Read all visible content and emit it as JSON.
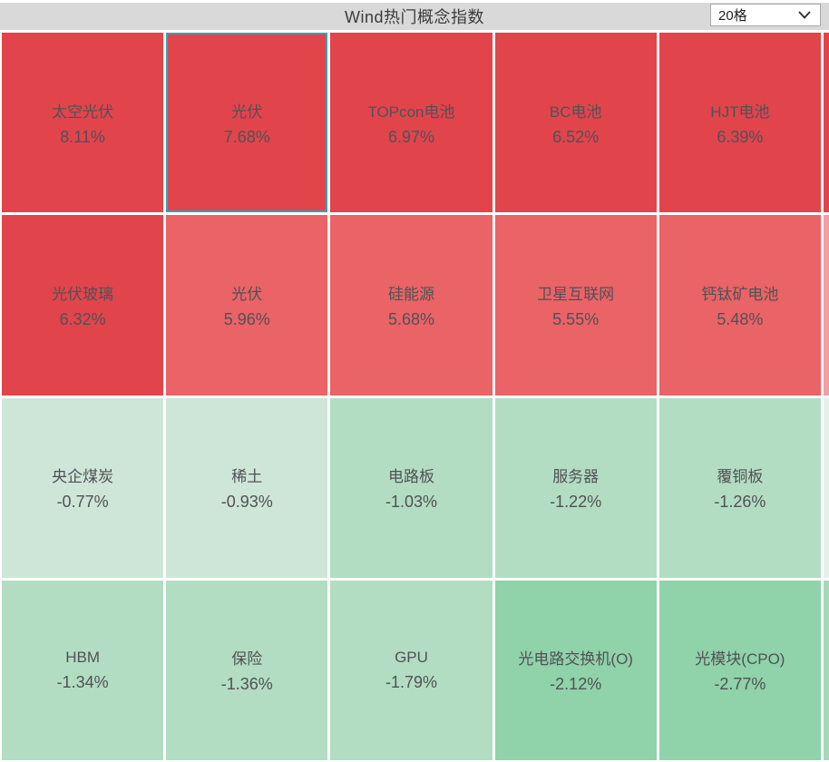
{
  "header": {
    "title": "Wind热门概念指数",
    "grid_size_selector": {
      "value": "20格",
      "chevron_icon": "chevron-down"
    }
  },
  "colors": {
    "header_bg": "#d9d9d9",
    "tile_text": "#515156",
    "selected_border": "#35a2b5",
    "red_strong": "#e2444b",
    "red_light": "#ea6366",
    "green_pale": "#cee6d8",
    "green_mid": "#b2ddc2",
    "green_deep": "#90d2a9",
    "sliver_red": "#e2444b",
    "sliver_pink": "#f0a0a2",
    "sliver_pale_green": "#e4f1e9",
    "sliver_mid_green": "#a5dab8"
  },
  "chart_data": {
    "type": "heatmap",
    "title": "Wind热门概念指数",
    "grid_size_label": "20格",
    "layout": "4 rows x 5 columns, partial sixth column clipped at right edge",
    "value_unit": "percent change",
    "rows": [
      {
        "sliver_band": "sliver_red",
        "cells": [
          {
            "name": "太空光伏",
            "change": "8.11%",
            "value": 8.11,
            "band": "red_strong",
            "selected": false
          },
          {
            "name": "光伏",
            "change": "7.68%",
            "value": 7.68,
            "band": "red_strong",
            "selected": true
          },
          {
            "name": "TOPcon电池",
            "change": "6.97%",
            "value": 6.97,
            "band": "red_strong",
            "selected": false
          },
          {
            "name": "BC电池",
            "change": "6.52%",
            "value": 6.52,
            "band": "red_strong",
            "selected": false
          },
          {
            "name": "HJT电池",
            "change": "6.39%",
            "value": 6.39,
            "band": "red_strong",
            "selected": false
          }
        ]
      },
      {
        "sliver_band": "sliver_pink",
        "cells": [
          {
            "name": "光伏玻璃",
            "change": "6.32%",
            "value": 6.32,
            "band": "red_strong",
            "selected": false
          },
          {
            "name": "光伏",
            "change": "5.96%",
            "value": 5.96,
            "band": "red_light",
            "selected": false
          },
          {
            "name": "硅能源",
            "change": "5.68%",
            "value": 5.68,
            "band": "red_light",
            "selected": false
          },
          {
            "name": "卫星互联网",
            "change": "5.55%",
            "value": 5.55,
            "band": "red_light",
            "selected": false
          },
          {
            "name": "钙钛矿电池",
            "change": "5.48%",
            "value": 5.48,
            "band": "red_light",
            "selected": false
          }
        ]
      },
      {
        "sliver_band": "sliver_pale_green",
        "cells": [
          {
            "name": "央企煤炭",
            "change": "-0.77%",
            "value": -0.77,
            "band": "green_pale",
            "selected": false
          },
          {
            "name": "稀土",
            "change": "-0.93%",
            "value": -0.93,
            "band": "green_pale",
            "selected": false
          },
          {
            "name": "电路板",
            "change": "-1.03%",
            "value": -1.03,
            "band": "green_mid",
            "selected": false
          },
          {
            "name": "服务器",
            "change": "-1.22%",
            "value": -1.22,
            "band": "green_mid",
            "selected": false
          },
          {
            "name": "覆铜板",
            "change": "-1.26%",
            "value": -1.26,
            "band": "green_mid",
            "selected": false
          }
        ]
      },
      {
        "sliver_band": "sliver_mid_green",
        "cells": [
          {
            "name": "HBM",
            "change": "-1.34%",
            "value": -1.34,
            "band": "green_mid",
            "selected": false
          },
          {
            "name": "保险",
            "change": "-1.36%",
            "value": -1.36,
            "band": "green_mid",
            "selected": false
          },
          {
            "name": "GPU",
            "change": "-1.79%",
            "value": -1.79,
            "band": "green_mid",
            "selected": false
          },
          {
            "name": "光电路交换机(O)",
            "change": "-2.12%",
            "value": -2.12,
            "band": "green_deep",
            "selected": false
          },
          {
            "name": "光模块(CPO)",
            "change": "-2.77%",
            "value": -2.77,
            "band": "green_deep",
            "selected": false
          }
        ]
      }
    ]
  }
}
